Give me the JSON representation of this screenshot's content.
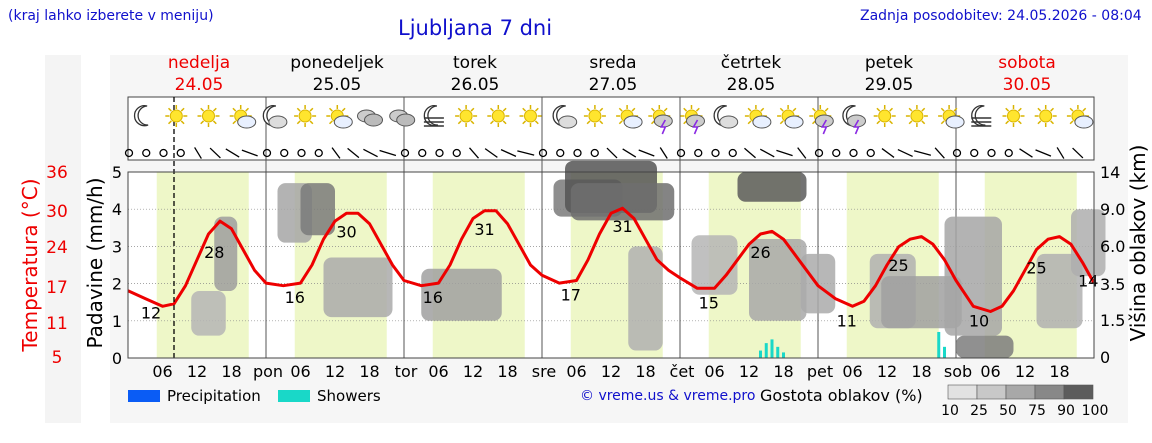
{
  "header": {
    "hint": "(kraj lahko izberete v meniju)",
    "title": "Ljubljana 7 dni",
    "updated": "Zadnja posodobitev: 24.05.2026 - 08:04"
  },
  "credit": "© vreme.us & vreme.pro",
  "colors": {
    "temperature": "#ee0000",
    "daylight": "#eef7c8",
    "precipitation": "#0a5cf5",
    "showers": "#19d8c8",
    "title_blue": "#1010cc"
  },
  "chart_data": {
    "type": "line",
    "title": "Ljubljana 7 dni",
    "days": [
      {
        "name": "nedelja",
        "date": "24.05",
        "weekend": true
      },
      {
        "name": "ponedeljek",
        "date": "25.05",
        "weekend": false
      },
      {
        "name": "torek",
        "date": "26.05",
        "weekend": false
      },
      {
        "name": "sreda",
        "date": "27.05",
        "weekend": false
      },
      {
        "name": "četrtek",
        "date": "28.05",
        "weekend": false
      },
      {
        "name": "petek",
        "date": "29.05",
        "weekend": false
      },
      {
        "name": "sobota",
        "date": "30.05",
        "weekend": true
      }
    ],
    "day_abbreviations": [
      "pon",
      "tor",
      "sre",
      "čet",
      "pet",
      "sob"
    ],
    "hour_ticks": [
      "06",
      "12",
      "18"
    ],
    "current_time_hour": 8,
    "y_left_temperature": {
      "label": "Temperatura (°C)",
      "ticks": [
        "5",
        "11",
        "17",
        "24",
        "30",
        "36"
      ]
    },
    "y_left_precipitation": {
      "label": "Padavine (mm/h)",
      "range": [
        0,
        5
      ],
      "ticks": [
        "0",
        "1",
        "2",
        "3",
        "4",
        "5"
      ]
    },
    "y_right_cloud_height": {
      "label": "Višina oblakov (km)",
      "ticks": [
        "0",
        "1.5",
        "3.5",
        "6.0",
        "9.0",
        "14"
      ]
    },
    "series": [
      {
        "name": "Temperatura",
        "points": [
          [
            0,
            15
          ],
          [
            3,
            13.5
          ],
          [
            6,
            12
          ],
          [
            8,
            12.5
          ],
          [
            10,
            16
          ],
          [
            12,
            21
          ],
          [
            14,
            26
          ],
          [
            16,
            28.5
          ],
          [
            18,
            27
          ],
          [
            20,
            23
          ],
          [
            22,
            19
          ],
          [
            24,
            16.5
          ],
          [
            27,
            16
          ],
          [
            30,
            16.5
          ],
          [
            32,
            20
          ],
          [
            34,
            25
          ],
          [
            36,
            28.5
          ],
          [
            38,
            30
          ],
          [
            40,
            30
          ],
          [
            42,
            28
          ],
          [
            44,
            24
          ],
          [
            46,
            20
          ],
          [
            48,
            17
          ],
          [
            51,
            16
          ],
          [
            54,
            16.5
          ],
          [
            56,
            20
          ],
          [
            58,
            25
          ],
          [
            60,
            29
          ],
          [
            62,
            30.5
          ],
          [
            64,
            30.5
          ],
          [
            66,
            28
          ],
          [
            68,
            24
          ],
          [
            70,
            20
          ],
          [
            72,
            18
          ],
          [
            75,
            16.5
          ],
          [
            78,
            17
          ],
          [
            80,
            21
          ],
          [
            82,
            26
          ],
          [
            84,
            30
          ],
          [
            86,
            31
          ],
          [
            88,
            29
          ],
          [
            90,
            25
          ],
          [
            92,
            21
          ],
          [
            94,
            19
          ],
          [
            96,
            17.5
          ],
          [
            99,
            15.5
          ],
          [
            102,
            15.5
          ],
          [
            104,
            18
          ],
          [
            106,
            21
          ],
          [
            108,
            24
          ],
          [
            110,
            26
          ],
          [
            112,
            26.5
          ],
          [
            114,
            25
          ],
          [
            116,
            22
          ],
          [
            118,
            19
          ],
          [
            120,
            16
          ],
          [
            123,
            13.5
          ],
          [
            126,
            12
          ],
          [
            128,
            13
          ],
          [
            130,
            16
          ],
          [
            132,
            20
          ],
          [
            134,
            23.5
          ],
          [
            136,
            25
          ],
          [
            138,
            25.5
          ],
          [
            140,
            24
          ],
          [
            142,
            21
          ],
          [
            144,
            17
          ],
          [
            147,
            12
          ],
          [
            150,
            11
          ],
          [
            152,
            12
          ],
          [
            154,
            15
          ],
          [
            156,
            19
          ],
          [
            158,
            23
          ],
          [
            160,
            25
          ],
          [
            162,
            25.5
          ],
          [
            164,
            24
          ],
          [
            166,
            20.5
          ],
          [
            168,
            16.5
          ]
        ]
      },
      {
        "name": "Showers",
        "bars": [
          [
            110,
            0.2
          ],
          [
            111,
            0.4
          ],
          [
            112,
            0.5
          ],
          [
            113,
            0.3
          ],
          [
            114,
            0.15
          ],
          [
            141,
            0.7
          ],
          [
            142,
            0.3
          ]
        ]
      },
      {
        "name": "Precipitation",
        "bars": []
      }
    ],
    "temperature_labels": [
      {
        "hour": 4,
        "text": "12"
      },
      {
        "hour": 15,
        "text": "28"
      },
      {
        "hour": 29,
        "text": "16"
      },
      {
        "hour": 38,
        "text": "30"
      },
      {
        "hour": 53,
        "text": "16"
      },
      {
        "hour": 62,
        "text": "31"
      },
      {
        "hour": 77,
        "text": "17"
      },
      {
        "hour": 86,
        "text": "31"
      },
      {
        "hour": 101,
        "text": "15"
      },
      {
        "hour": 110,
        "text": "26"
      },
      {
        "hour": 125,
        "text": "11"
      },
      {
        "hour": 134,
        "text": "25"
      },
      {
        "hour": 148,
        "text": "10"
      },
      {
        "hour": 158,
        "text": "25"
      },
      {
        "hour": 167,
        "text": "14"
      }
    ],
    "cloud_density_legend": {
      "title": "Gostota oblakov (%)",
      "ticks": [
        "10",
        "25",
        "50",
        "75",
        "90",
        "100"
      ]
    },
    "legend": [
      {
        "label": "Precipitation",
        "color": "#0a5cf5"
      },
      {
        "label": "Showers",
        "color": "#19d8c8"
      }
    ],
    "weather_icons": [
      "moon",
      "sun",
      "sun",
      "sun-cloud",
      "moon-cloud",
      "sun",
      "sun-cloud",
      "cloud",
      "cloud",
      "moon-fog",
      "sun",
      "sun",
      "sun",
      "moon-cloud",
      "sun",
      "sun-cloud",
      "storm",
      "storm",
      "moon-cloud",
      "sun-cloud",
      "sun-cloud",
      "storm",
      "moon-storm",
      "sun",
      "sun",
      "sun-cloud",
      "moon-fog",
      "sun",
      "sun",
      "sun-cloud"
    ]
  }
}
